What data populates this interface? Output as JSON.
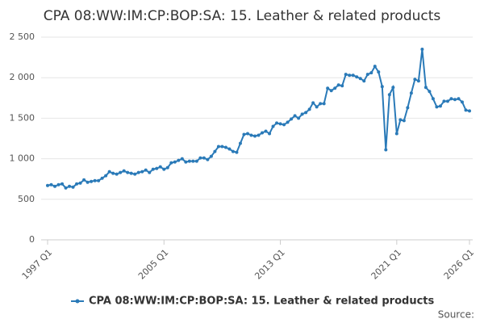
{
  "chart_data": {
    "type": "line",
    "title": "CPA 08:WW:IM:CP:BOP:SA: 15. Leather & related products",
    "categories": [
      "1997 Q1",
      null,
      null,
      null,
      null,
      null,
      null,
      null,
      null,
      null,
      null,
      null,
      null,
      null,
      null,
      null,
      null,
      null,
      null,
      null,
      null,
      null,
      null,
      null,
      null,
      null,
      null,
      null,
      null,
      null,
      null,
      null,
      "2005 Q1",
      null,
      null,
      null,
      null,
      null,
      null,
      null,
      null,
      null,
      null,
      null,
      null,
      null,
      null,
      null,
      null,
      null,
      null,
      null,
      null,
      null,
      null,
      null,
      null,
      null,
      null,
      null,
      null,
      null,
      null,
      null,
      "2013 Q1",
      null,
      null,
      null,
      null,
      null,
      null,
      null,
      null,
      null,
      null,
      null,
      null,
      null,
      null,
      null,
      null,
      null,
      null,
      null,
      null,
      null,
      null,
      null,
      null,
      null,
      null,
      null,
      null,
      null,
      null,
      null,
      "2021 Q1",
      null,
      null,
      null,
      null,
      null,
      null,
      null,
      null,
      null,
      null,
      null,
      null,
      null,
      null,
      null,
      null,
      null,
      null,
      null,
      "2026 Q1"
    ],
    "series": [
      {
        "name": "CPA 08:WW:IM:CP:BOP:SA: 15. Leather & related products",
        "color": "#2a7ab8",
        "values": [
          670,
          680,
          660,
          680,
          690,
          640,
          660,
          650,
          690,
          700,
          740,
          710,
          720,
          730,
          730,
          760,
          790,
          840,
          820,
          810,
          830,
          850,
          830,
          820,
          810,
          830,
          840,
          860,
          830,
          870,
          880,
          900,
          870,
          890,
          950,
          960,
          980,
          1000,
          960,
          970,
          970,
          970,
          1010,
          1010,
          990,
          1030,
          1090,
          1150,
          1150,
          1140,
          1120,
          1090,
          1080,
          1190,
          1300,
          1310,
          1290,
          1280,
          1290,
          1320,
          1340,
          1310,
          1400,
          1440,
          1430,
          1420,
          1450,
          1490,
          1530,
          1500,
          1550,
          1570,
          1610,
          1690,
          1640,
          1680,
          1680,
          1870,
          1840,
          1870,
          1910,
          1900,
          2040,
          2030,
          2030,
          2010,
          1990,
          1960,
          2040,
          2060,
          2140,
          2070,
          1890,
          1110,
          1790,
          1880,
          1310,
          1480,
          1470,
          1630,
          1810,
          1980,
          1960,
          2350,
          1880,
          1830,
          1740,
          1640,
          1650,
          1710,
          1710,
          1740,
          1730,
          1740,
          1700,
          1600,
          1590
        ]
      }
    ],
    "ylim": [
      0,
      2500
    ],
    "yticks": [
      0,
      500,
      {
        "value": 1000,
        "label": "1 000"
      },
      {
        "value": 1500,
        "label": "1 500"
      },
      {
        "value": 2000,
        "label": "2 000"
      },
      {
        "value": 2500,
        "label": "2 500"
      }
    ],
    "grid": true,
    "legend": "bottom",
    "source": "Source:"
  }
}
